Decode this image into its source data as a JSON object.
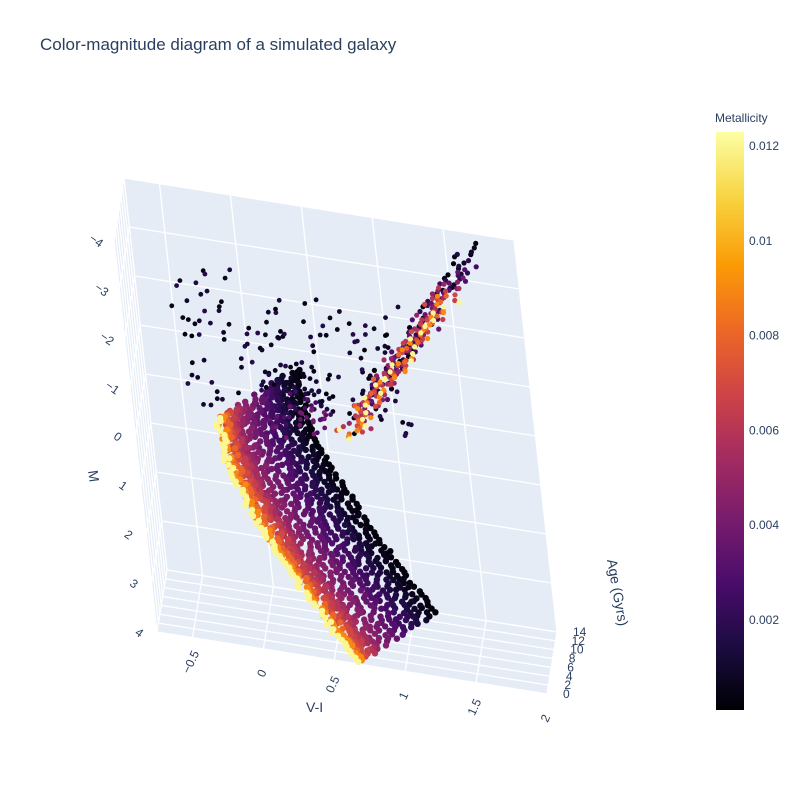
{
  "chart_data": {
    "type": "scatter3d",
    "title": "Color-magnitude diagram of a simulated galaxy",
    "axes": {
      "x": {
        "label": "V-I",
        "range": [
          -0.75,
          2.0
        ],
        "ticks": [
          "−0.5",
          "0",
          "0.5",
          "1",
          "1.5",
          "2"
        ],
        "tick_values": [
          -0.5,
          0,
          0.5,
          1,
          1.5,
          2
        ]
      },
      "y": {
        "label": "Age (Gyrs)",
        "range": [
          0,
          14
        ],
        "ticks": [
          "0",
          "2",
          "4",
          "6",
          "8",
          "10",
          "12",
          "14"
        ],
        "tick_values": [
          0,
          2,
          4,
          6,
          8,
          10,
          12,
          14
        ]
      },
      "z": {
        "label": "M",
        "range": [
          4,
          -4
        ],
        "reversed": true,
        "ticks": [
          "−4",
          "−3",
          "−2",
          "−1",
          "0",
          "1",
          "2",
          "3",
          "4"
        ],
        "tick_values": [
          -4,
          -3,
          -2,
          -1,
          0,
          1,
          2,
          3,
          4
        ]
      }
    },
    "colorbar": {
      "title": "Metallicity",
      "colorscale": "Inferno",
      "range": [
        0.0001,
        0.0123
      ],
      "ticks": [
        "0.012",
        "0.01",
        "0.008",
        "0.006",
        "0.004",
        "0.002"
      ],
      "tick_values": [
        0.012,
        0.01,
        0.008,
        0.006,
        0.004,
        0.002
      ]
    },
    "isochrones": [
      {
        "age": 0.5,
        "metallicity": 0.012
      },
      {
        "age": 1.0,
        "metallicity": 0.009
      },
      {
        "age": 1.5,
        "metallicity": 0.008
      },
      {
        "age": 2.0,
        "metallicity": 0.007
      },
      {
        "age": 2.5,
        "metallicity": 0.0065
      },
      {
        "age": 3.0,
        "metallicity": 0.006
      },
      {
        "age": 3.5,
        "metallicity": 0.0055
      },
      {
        "age": 4.0,
        "metallicity": 0.005
      },
      {
        "age": 5.0,
        "metallicity": 0.0045
      },
      {
        "age": 6.0,
        "metallicity": 0.004
      },
      {
        "age": 7.0,
        "metallicity": 0.0035
      },
      {
        "age": 8.0,
        "metallicity": 0.003
      },
      {
        "age": 9.0,
        "metallicity": 0.0025
      },
      {
        "age": 10.0,
        "metallicity": 0.002
      },
      {
        "age": 11.0,
        "metallicity": 0.0015
      },
      {
        "age": 12.0,
        "metallicity": 0.001
      },
      {
        "age": 13.0,
        "metallicity": 0.0006
      },
      {
        "age": 14.0,
        "metallicity": 0.0003
      }
    ]
  }
}
